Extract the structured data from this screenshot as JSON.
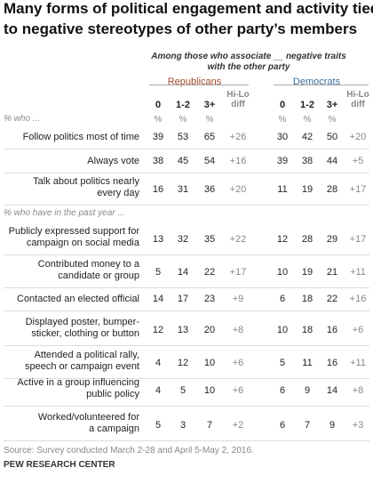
{
  "title": [
    "Many forms of political engagement  and activity tied",
    "to negative stereotypes of other party’s members"
  ],
  "subtitle": [
    "Among those who associate __ negative traits",
    "with the other party"
  ],
  "groups": [
    {
      "name": "Republicans",
      "color": "#a4472b",
      "columns": [
        "0",
        "1-2",
        "3+",
        "Hi-Lo diff"
      ],
      "units": [
        "%",
        "%",
        "%"
      ]
    },
    {
      "name": "Democrats",
      "color": "#3d6f98",
      "columns": [
        "0",
        "1-2",
        "3+",
        "Hi-Lo diff"
      ],
      "units": [
        "%",
        "%",
        "%"
      ]
    }
  ],
  "sections": [
    {
      "heading": "% who ...",
      "rows": [
        {
          "label": [
            "Follow politics most of time"
          ],
          "cells": [
            39,
            53,
            65,
            "+26",
            30,
            42,
            50,
            "+20"
          ]
        },
        {
          "label": [
            "Always vote"
          ],
          "cells": [
            38,
            45,
            54,
            "+16",
            39,
            38,
            44,
            "+5"
          ]
        },
        {
          "label": [
            "Talk about politics nearly",
            "every day"
          ],
          "cells": [
            16,
            31,
            36,
            "+20",
            11,
            19,
            28,
            "+17"
          ]
        }
      ]
    },
    {
      "heading": "% who have in the past year ...",
      "rows": [
        {
          "label": [
            "Publicly expressed support for",
            "campaign on social media"
          ],
          "cells": [
            13,
            32,
            35,
            "+22",
            12,
            28,
            29,
            "+17"
          ]
        },
        {
          "label": [
            "Contributed money to a",
            "candidate or group"
          ],
          "cells": [
            5,
            14,
            22,
            "+17",
            10,
            19,
            21,
            "+11"
          ]
        },
        {
          "label": [
            "Contacted an elected official"
          ],
          "cells": [
            14,
            17,
            23,
            "+9",
            6,
            18,
            22,
            "+16"
          ]
        },
        {
          "label": [
            "Displayed poster, bumper-",
            "sticker, clothing or button"
          ],
          "cells": [
            12,
            13,
            20,
            "+8",
            10,
            18,
            16,
            "+6"
          ]
        },
        {
          "label": [
            "Attended a political rally,",
            "speech or campaign event"
          ],
          "cells": [
            4,
            12,
            10,
            "+6",
            5,
            11,
            16,
            "+11"
          ]
        },
        {
          "label": [
            "Active in a group influencing",
            "public policy"
          ],
          "cells": [
            4,
            5,
            10,
            "+6",
            6,
            9,
            14,
            "+8"
          ]
        },
        {
          "label": [
            "Worked/volunteered for",
            "a campaign"
          ],
          "cells": [
            5,
            3,
            7,
            "+2",
            6,
            7,
            9,
            "+3"
          ]
        }
      ]
    }
  ],
  "source": "Source: Survey conducted March 2-28 and April 5-May 2, 2016.",
  "brand": "PEW RESEARCH CENTER"
}
